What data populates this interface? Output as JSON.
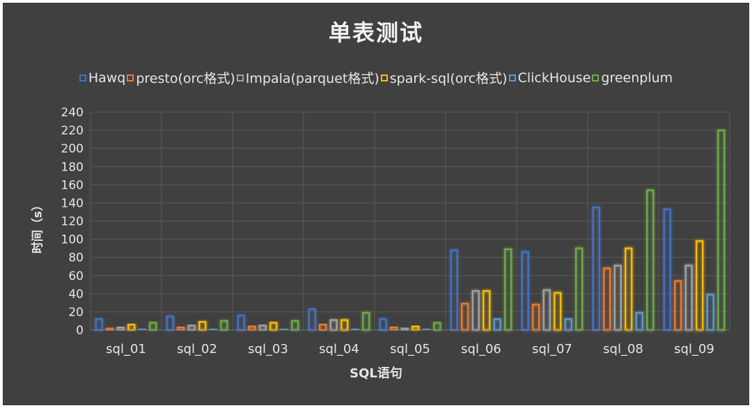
{
  "chart_data": {
    "type": "bar",
    "title": "单表测试",
    "xlabel": "SQL语句",
    "ylabel": "时间（s）",
    "ylim": [
      0,
      240
    ],
    "yticks": [
      0,
      20,
      40,
      60,
      80,
      100,
      120,
      140,
      160,
      180,
      200,
      220,
      240
    ],
    "grid": true,
    "legend_position": "top",
    "categories": [
      "sql_01",
      "sql_02",
      "sql_03",
      "sql_04",
      "sql_05",
      "sql_06",
      "sql_07",
      "sql_08",
      "sql_09"
    ],
    "series": [
      {
        "name": "Hawq",
        "color": "#4472c4",
        "values": [
          12,
          15,
          16,
          23,
          12,
          88,
          86,
          135,
          133
        ]
      },
      {
        "name": "presto(orc格式)",
        "color": "#ed7d31",
        "values": [
          2,
          3,
          4,
          6,
          3,
          29,
          28,
          68,
          54
        ]
      },
      {
        "name": "Impala(parquet格式)",
        "color": "#a5a5a5",
        "values": [
          3,
          5,
          5,
          11,
          2,
          43,
          44,
          71,
          71
        ]
      },
      {
        "name": "spark-sql(orc格式)",
        "color": "#ffc000",
        "values": [
          6,
          9,
          8,
          11,
          4,
          43,
          41,
          90,
          98
        ]
      },
      {
        "name": "ClickHouse",
        "color": "#5b9bd5",
        "values": [
          1,
          1,
          1,
          1,
          1,
          12,
          12,
          19,
          39
        ]
      },
      {
        "name": "greenplum",
        "color": "#70ad47",
        "values": [
          8,
          10,
          10,
          19,
          8,
          89,
          90,
          154,
          220
        ]
      }
    ]
  }
}
